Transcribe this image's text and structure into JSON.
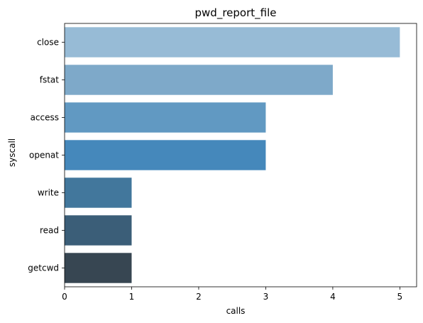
{
  "chart_data": {
    "type": "bar",
    "orientation": "horizontal",
    "title": "pwd_report_file",
    "xlabel": "calls",
    "ylabel": "syscall",
    "categories": [
      "close",
      "fstat",
      "access",
      "openat",
      "write",
      "read",
      "getcwd"
    ],
    "values": [
      5,
      4,
      3,
      3,
      1,
      1,
      1
    ],
    "xlim": [
      0,
      5.25
    ],
    "xticks": [
      0,
      1,
      2,
      3,
      4,
      5
    ],
    "grid": false,
    "legend": "none",
    "colors": [
      "#97bbd6",
      "#7ea9c9",
      "#6199c2",
      "#4588bb",
      "#42779c",
      "#3b5e78",
      "#374652"
    ]
  }
}
